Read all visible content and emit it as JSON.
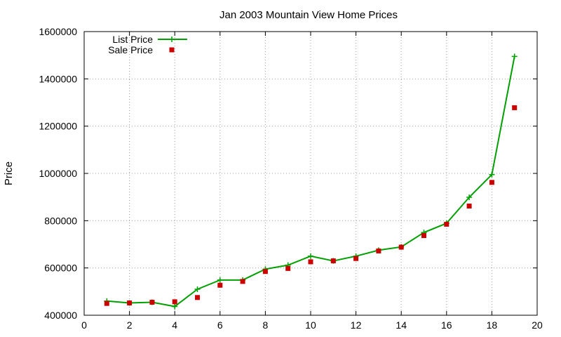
{
  "chart_data": {
    "type": "line",
    "title": "Jan 2003 Mountain View Home Prices",
    "xlabel": "",
    "ylabel": "Price",
    "xlim": [
      0,
      20
    ],
    "ylim": [
      400000,
      1600000
    ],
    "xticks": [
      0,
      2,
      4,
      6,
      8,
      10,
      12,
      14,
      16,
      18,
      20
    ],
    "yticks": [
      400000,
      600000,
      800000,
      1000000,
      1200000,
      1400000,
      1600000
    ],
    "grid": true,
    "legend_position": "top-left",
    "series": [
      {
        "name": "List Price",
        "type": "line",
        "marker": "plus",
        "color": "#00a000",
        "x": [
          1,
          2,
          3,
          4,
          5,
          6,
          7,
          8,
          9,
          10,
          11,
          12,
          13,
          14,
          15,
          16,
          17,
          18,
          19
        ],
        "y": [
          460000,
          452000,
          455000,
          437000,
          510000,
          549000,
          549000,
          595000,
          612000,
          650000,
          630000,
          650000,
          675000,
          689000,
          750000,
          789000,
          899000,
          995000,
          1495000
        ]
      },
      {
        "name": "Sale Price",
        "type": "scatter",
        "marker": "square",
        "color": "#cc0000",
        "x": [
          1,
          2,
          3,
          4,
          5,
          6,
          7,
          8,
          9,
          10,
          11,
          12,
          13,
          14,
          15,
          16,
          17,
          18,
          19
        ],
        "y": [
          450000,
          452000,
          455000,
          457000,
          475000,
          527000,
          543000,
          585000,
          598000,
          626000,
          630000,
          640000,
          672000,
          688000,
          737000,
          785000,
          862000,
          962000,
          1278000
        ]
      }
    ]
  }
}
